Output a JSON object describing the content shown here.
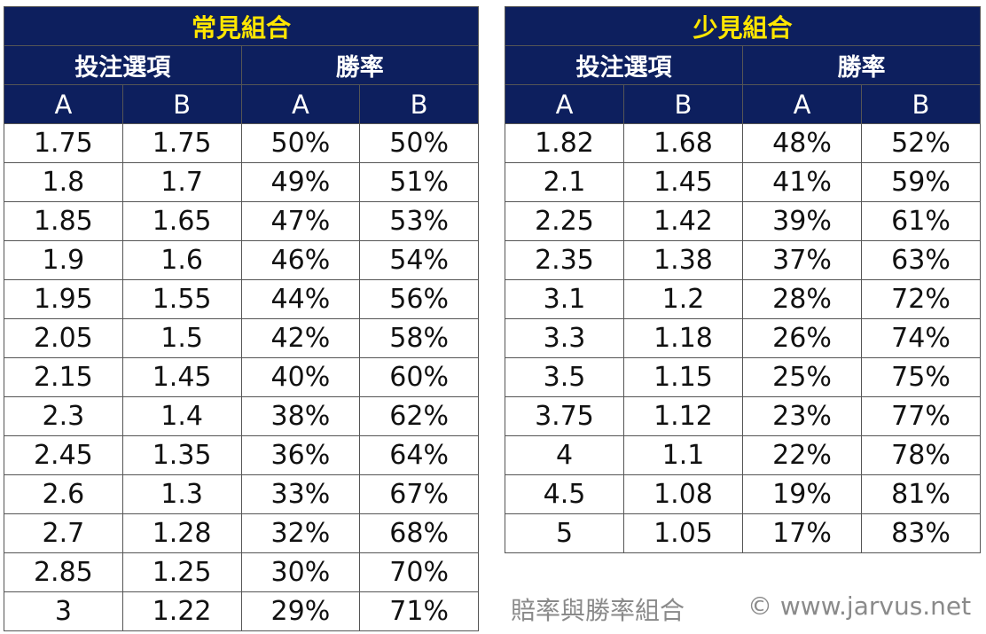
{
  "common": {
    "title": "常見組合",
    "header_options": "投注選項",
    "header_winrate": "勝率",
    "col_a": "A",
    "col_b": "B",
    "rows": [
      [
        "1.75",
        "1.75",
        "50%",
        "50%"
      ],
      [
        "1.8",
        "1.7",
        "49%",
        "51%"
      ],
      [
        "1.85",
        "1.65",
        "47%",
        "53%"
      ],
      [
        "1.9",
        "1.6",
        "46%",
        "54%"
      ],
      [
        "1.95",
        "1.55",
        "44%",
        "56%"
      ],
      [
        "2.05",
        "1.5",
        "42%",
        "58%"
      ],
      [
        "2.15",
        "1.45",
        "40%",
        "60%"
      ],
      [
        "2.3",
        "1.4",
        "38%",
        "62%"
      ],
      [
        "2.45",
        "1.35",
        "36%",
        "64%"
      ],
      [
        "2.6",
        "1.3",
        "33%",
        "67%"
      ],
      [
        "2.7",
        "1.28",
        "32%",
        "68%"
      ],
      [
        "2.85",
        "1.25",
        "30%",
        "70%"
      ],
      [
        "3",
        "1.22",
        "29%",
        "71%"
      ]
    ]
  },
  "rare": {
    "title": "少見組合",
    "header_options": "投注選項",
    "header_winrate": "勝率",
    "col_a": "A",
    "col_b": "B",
    "rows": [
      [
        "1.82",
        "1.68",
        "48%",
        "52%"
      ],
      [
        "2.1",
        "1.45",
        "41%",
        "59%"
      ],
      [
        "2.25",
        "1.42",
        "39%",
        "61%"
      ],
      [
        "2.35",
        "1.38",
        "37%",
        "63%"
      ],
      [
        "3.1",
        "1.2",
        "28%",
        "72%"
      ],
      [
        "3.3",
        "1.18",
        "26%",
        "74%"
      ],
      [
        "3.5",
        "1.15",
        "25%",
        "75%"
      ],
      [
        "3.75",
        "1.12",
        "23%",
        "77%"
      ],
      [
        "4",
        "1.1",
        "22%",
        "78%"
      ],
      [
        "4.5",
        "1.08",
        "19%",
        "81%"
      ],
      [
        "5",
        "1.05",
        "17%",
        "83%"
      ]
    ]
  },
  "footer": {
    "caption": "賠率與勝率組合",
    "copyright": "© www.jarvus.net"
  },
  "colors": {
    "header_bg": "#0d1f5e",
    "title_text": "#ffe600",
    "header_text": "#ffffff",
    "caption_text": "#8a8a8a"
  }
}
